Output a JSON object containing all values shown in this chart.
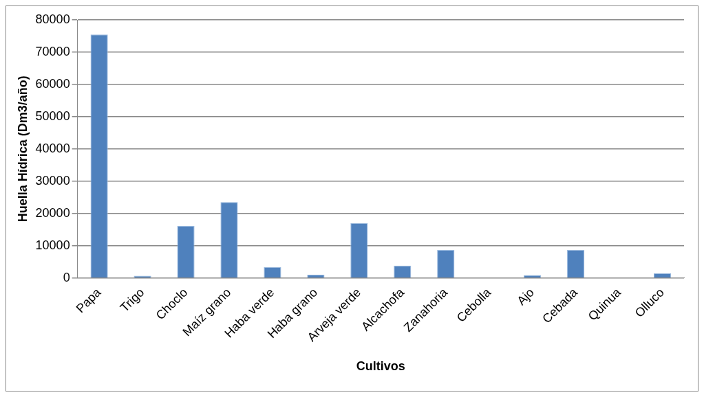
{
  "chart_data": {
    "type": "bar",
    "xlabel": "Cultivos",
    "ylabel": "Huella Hídrica (Dm3/año)",
    "categories": [
      "Papa",
      "Trigo",
      "Choclo",
      "Maíz grano",
      "Haba verde",
      "Haba grano",
      "Arveja verde",
      "Alcachofa",
      "Zanahoria",
      "Cebolla",
      "Ajo",
      "Cebada",
      "Quinua",
      "Olluco"
    ],
    "values": [
      75500,
      700,
      16100,
      23500,
      3400,
      1000,
      17000,
      3800,
      8650,
      0,
      900,
      8700,
      0,
      1500
    ],
    "color": "#4f81bd",
    "ylim": [
      0,
      80000
    ],
    "yticks": [
      0,
      10000,
      20000,
      30000,
      40000,
      50000,
      60000,
      70000,
      80000
    ],
    "grid": "y",
    "legend": false
  }
}
